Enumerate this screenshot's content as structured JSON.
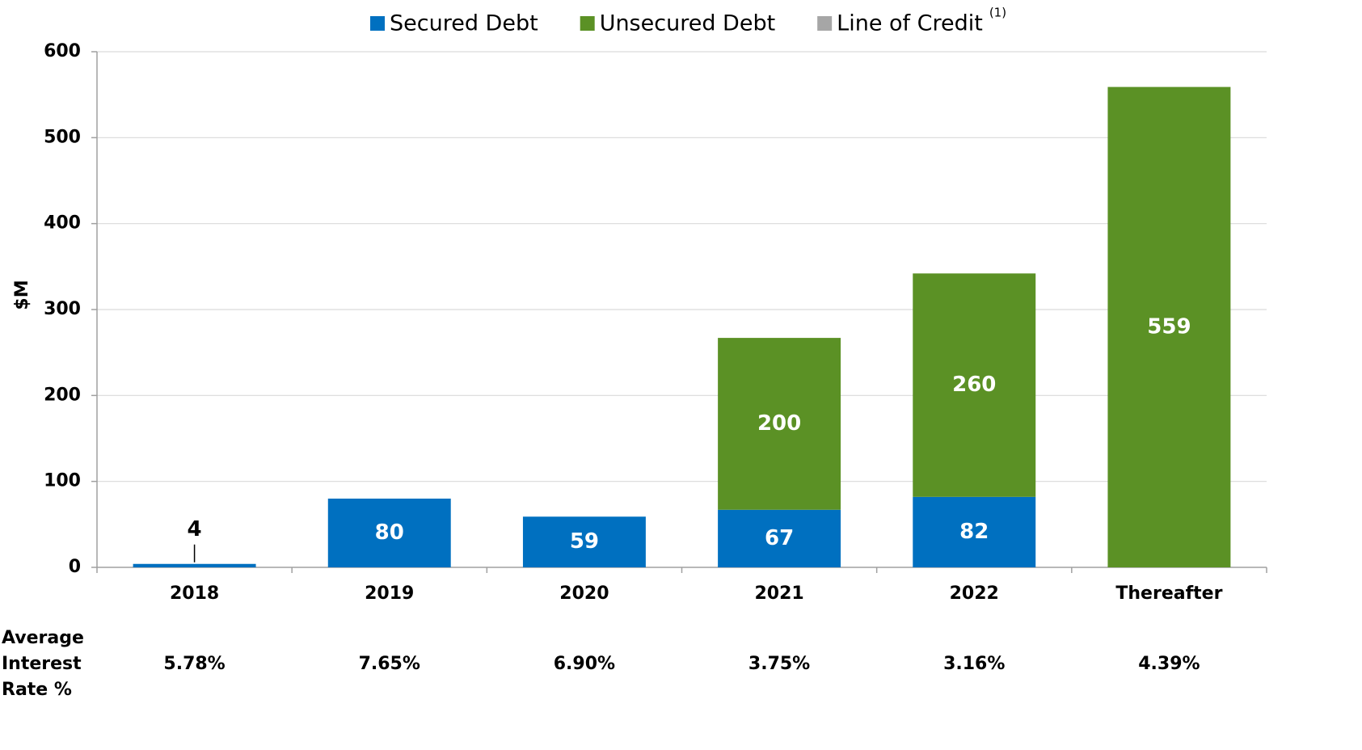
{
  "chart_data": {
    "type": "stacked_bar",
    "y_label": "$M",
    "categories": [
      "2018",
      "2019",
      "2020",
      "2021",
      "2022",
      "Thereafter"
    ],
    "series": [
      {
        "name": "Secured Debt",
        "color": "#0070c0",
        "values": [
          4,
          80,
          59,
          67,
          82,
          null
        ]
      },
      {
        "name": "Unsecured Debt",
        "color": "#5b9125",
        "values": [
          null,
          null,
          null,
          200,
          260,
          559
        ]
      },
      {
        "name": "Line of Credit",
        "color": "#a6a6a6",
        "values": [
          null,
          null,
          null,
          null,
          null,
          null
        ]
      }
    ],
    "legend_note": "(1)",
    "ylim": [
      0,
      600
    ],
    "yticks": [
      0,
      100,
      200,
      300,
      400,
      500,
      600
    ],
    "grid": true,
    "legend": "top",
    "rate_row": {
      "label": [
        "Average",
        "Interest",
        "Rate %"
      ],
      "values": [
        "5.78%",
        "7.65%",
        "6.90%",
        "3.75%",
        "3.16%",
        "4.39%"
      ]
    }
  }
}
